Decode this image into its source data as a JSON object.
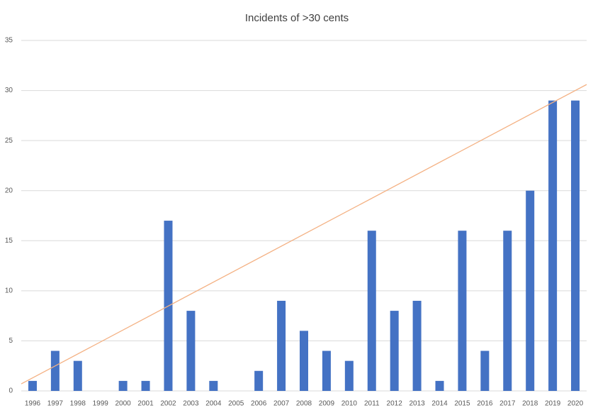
{
  "chart_data": {
    "type": "bar",
    "title": "Incidents of >30 cents",
    "categories": [
      "1996",
      "1997",
      "1998",
      "1999",
      "2000",
      "2001",
      "2002",
      "2003",
      "2004",
      "2005",
      "2006",
      "2007",
      "2008",
      "2009",
      "2010",
      "2011",
      "2012",
      "2013",
      "2014",
      "2015",
      "2016",
      "2017",
      "2018",
      "2019",
      "2020"
    ],
    "values": [
      1,
      4,
      3,
      0,
      1,
      1,
      17,
      8,
      1,
      0,
      2,
      9,
      6,
      4,
      3,
      16,
      8,
      9,
      1,
      16,
      4,
      16,
      20,
      29,
      29
    ],
    "color": "#4472c4",
    "ylim": [
      0,
      35
    ],
    "yticks": [
      0,
      5,
      10,
      15,
      20,
      25,
      30,
      35
    ],
    "grid": true,
    "trendline": {
      "color": "#f4b183",
      "values": [
        1.3,
        30
      ]
    }
  }
}
